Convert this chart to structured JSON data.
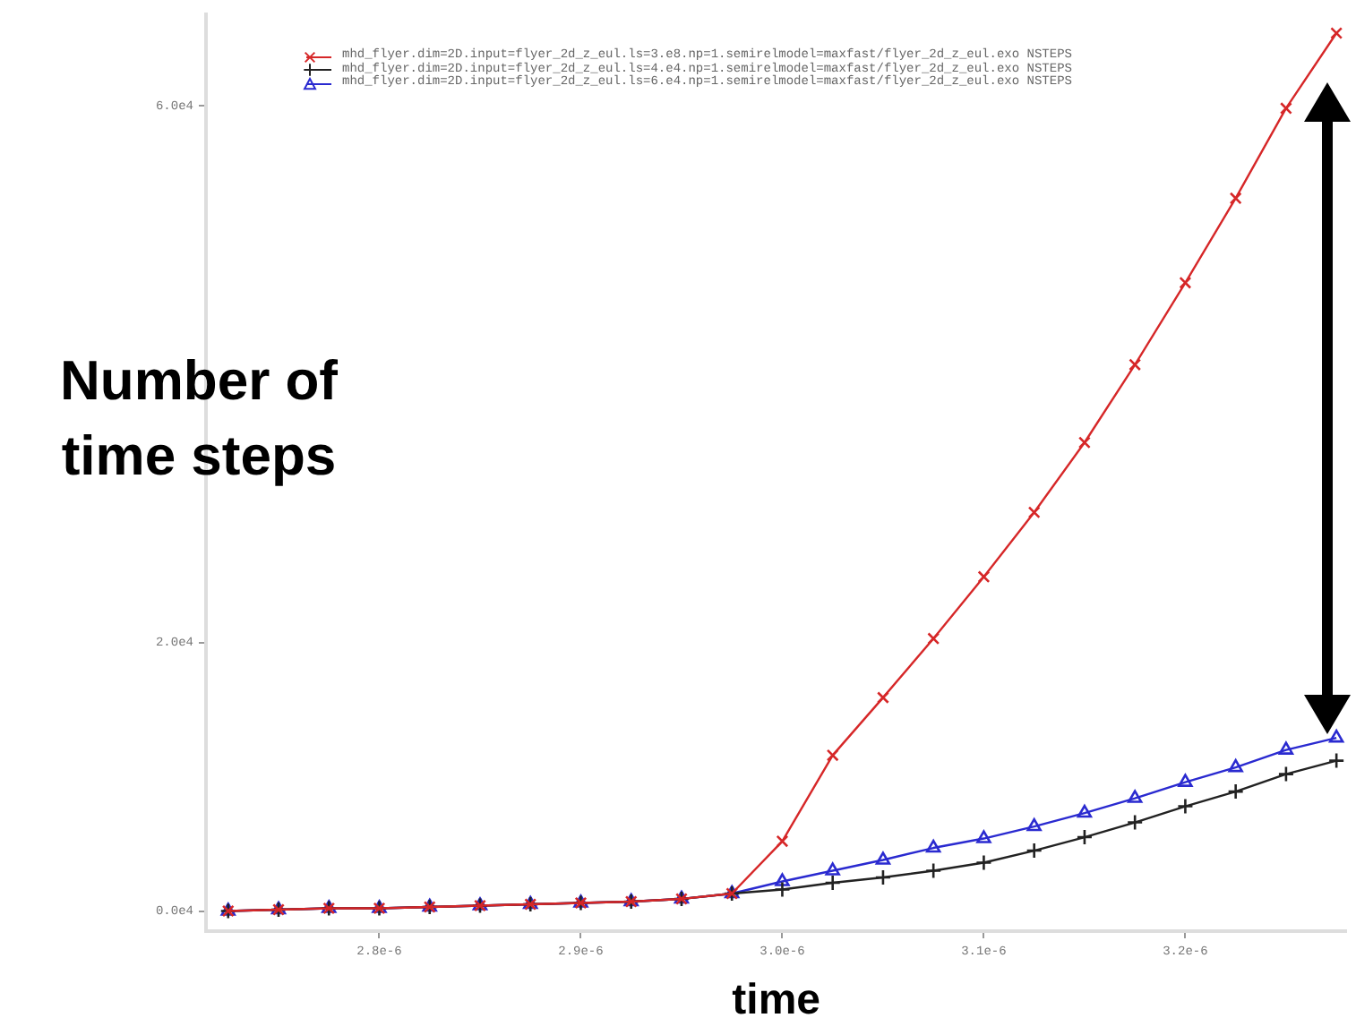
{
  "chart_data": {
    "type": "line",
    "xlabel": "time",
    "ylabel": "Number of time steps",
    "x": [
      2.725e-06,
      2.75e-06,
      2.775e-06,
      2.8e-06,
      2.825e-06,
      2.85e-06,
      2.875e-06,
      2.9e-06,
      2.925e-06,
      2.95e-06,
      2.975e-06,
      3e-06,
      3.025e-06,
      3.05e-06,
      3.075e-06,
      3.1e-06,
      3.125e-06,
      3.15e-06,
      3.175e-06,
      3.2e-06,
      3.225e-06,
      3.25e-06,
      3.275e-06
    ],
    "series": [
      {
        "name": "mhd_flyer.dim=2D.input=flyer_2d_z_eul.ls=3.e8.np=1.semirelmodel=maxfast/flyer_2d_z_eul.exo NSTEPS",
        "color": "#d62728",
        "marker": "cross",
        "values": [
          0,
          100,
          200,
          200,
          300,
          400,
          500,
          600,
          700,
          900,
          1300,
          5200,
          11600,
          15900,
          20300,
          24900,
          29700,
          34900,
          40700,
          46800,
          53100,
          59800,
          65400
        ]
      },
      {
        "name": "mhd_flyer.dim=2D.input=flyer_2d_z_eul.ls=4.e4.np=1.semirelmodel=maxfast/flyer_2d_z_eul.exo NSTEPS",
        "color": "#222222",
        "marker": "plus",
        "values": [
          0,
          100,
          200,
          200,
          300,
          400,
          500,
          600,
          700,
          900,
          1300,
          1600,
          2100,
          2500,
          3000,
          3600,
          4500,
          5500,
          6600,
          7800,
          8900,
          10200,
          11200
        ]
      },
      {
        "name": "mhd_flyer.dim=2D.input=flyer_2d_z_eul.ls=6.e4.np=1.semirelmodel=maxfast/flyer_2d_z_eul.exo NSTEPS",
        "color": "#2a2ad0",
        "marker": "triangle",
        "values": [
          0,
          100,
          200,
          200,
          300,
          400,
          500,
          600,
          700,
          900,
          1300,
          2200,
          3000,
          3800,
          4700,
          5400,
          6300,
          7300,
          8400,
          9600,
          10700,
          12000,
          12900
        ]
      }
    ],
    "xlim": [
      2.714e-06,
      3.28e-06
    ],
    "xticks": [
      {
        "value": 2.8e-06,
        "label": "2.8e-6"
      },
      {
        "value": 2.9e-06,
        "label": "2.9e-6"
      },
      {
        "value": 3e-06,
        "label": "3.0e-6"
      },
      {
        "value": 3.1e-06,
        "label": "3.1e-6"
      },
      {
        "value": 3.2e-06,
        "label": "3.2e-6"
      }
    ],
    "ylim": [
      -1500,
      66800
    ],
    "yticks": [
      {
        "value": 0,
        "label": "0.0e4"
      },
      {
        "value": 20000,
        "label": "2.0e4"
      },
      {
        "value": 40000,
        "label": null
      },
      {
        "value": 60000,
        "label": "6.0e4"
      }
    ],
    "legend": "top",
    "line_style": "solid"
  }
}
